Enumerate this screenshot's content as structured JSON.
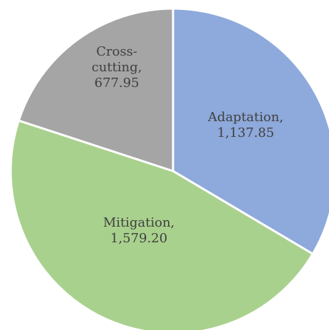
{
  "chart_data": {
    "type": "pie",
    "start_angle": "12 o'clock",
    "direction": "clockwise",
    "slices": [
      {
        "label": "Adaptation,",
        "value": 1137.85,
        "value_label": "1,137.85",
        "color": "#8EA9DB"
      },
      {
        "label": "Mitigation,",
        "value": 1579.2,
        "value_label": "1,579.20",
        "color": "#A9D18E"
      },
      {
        "label_lines": [
          "Cross-",
          "cutting,"
        ],
        "value": 677.95,
        "value_label": "677.95",
        "color": "#A5A5A5"
      }
    ]
  }
}
